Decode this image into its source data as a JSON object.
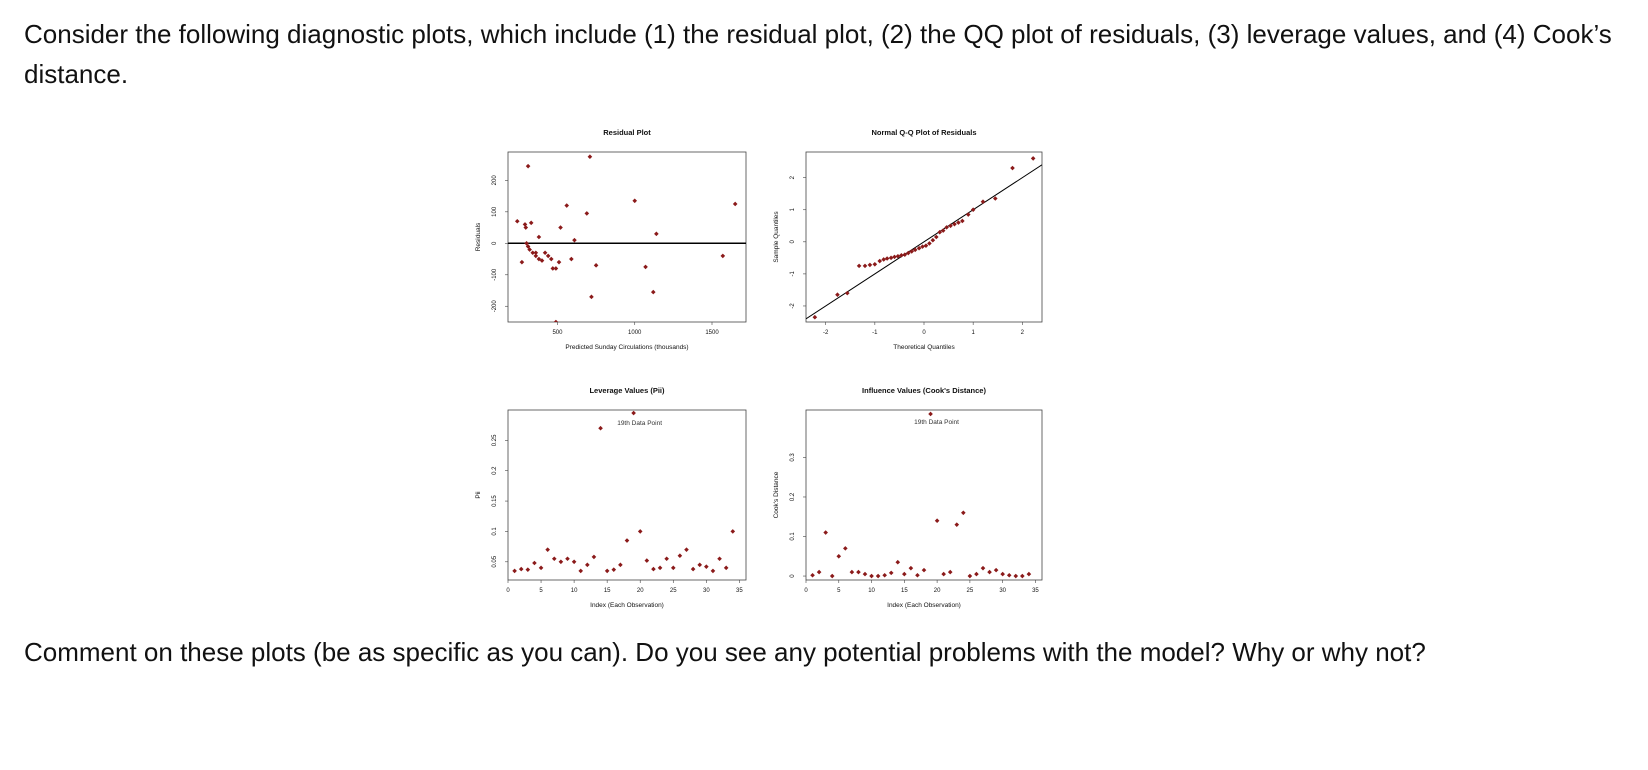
{
  "question": {
    "intro": "Consider the following diagnostic plots, which include (1) the residual plot, (2) the QQ plot of residuals, (3) leverage values, and (4) Cook’s distance.",
    "prompt": "Comment on these plots (be as specific as you can). Do you see any potential problems with the model? Why or why not?"
  },
  "colors": {
    "point": "#8b1a1a",
    "axis": "#111111",
    "reference_line": "#000000"
  },
  "chart_data": [
    {
      "type": "scatter",
      "title": "Residual Plot",
      "xlabel": "Predicted Sunday Circulations (thousands)",
      "ylabel": "Residuals",
      "xlim": [
        180,
        1720
      ],
      "ylim": [
        -250,
        290
      ],
      "xticks": [
        500,
        1000,
        1500
      ],
      "yticks": [
        -200,
        -100,
        0,
        100,
        200
      ],
      "hline": 0,
      "points": [
        [
          240,
          70
        ],
        [
          290,
          60
        ],
        [
          295,
          50
        ],
        [
          330,
          65
        ],
        [
          310,
          -10
        ],
        [
          300,
          0
        ],
        [
          320,
          -20
        ],
        [
          340,
          -30
        ],
        [
          360,
          -40
        ],
        [
          380,
          -50
        ],
        [
          360,
          -30
        ],
        [
          380,
          20
        ],
        [
          400,
          -55
        ],
        [
          420,
          -30
        ],
        [
          440,
          -40
        ],
        [
          460,
          -50
        ],
        [
          470,
          -80
        ],
        [
          490,
          -80
        ],
        [
          510,
          -60
        ],
        [
          520,
          50
        ],
        [
          560,
          120
        ],
        [
          590,
          -50
        ],
        [
          610,
          10
        ],
        [
          690,
          95
        ],
        [
          710,
          275
        ],
        [
          750,
          -70
        ],
        [
          720,
          -170
        ],
        [
          310,
          245
        ],
        [
          490,
          -250
        ],
        [
          1000,
          135
        ],
        [
          1070,
          -75
        ],
        [
          1120,
          -155
        ],
        [
          1140,
          30
        ],
        [
          1570,
          -40
        ],
        [
          1650,
          125
        ],
        [
          270,
          -60
        ]
      ]
    },
    {
      "type": "scatter",
      "title": "Normal Q-Q Plot of Residuals",
      "xlabel": "Theoretical Quantiles",
      "ylabel": "Sample Quantiles",
      "xlim": [
        -2.4,
        2.4
      ],
      "ylim": [
        -2.5,
        2.8
      ],
      "xticks": [
        -2,
        -1,
        0,
        1,
        2
      ],
      "yticks": [
        -2,
        -1,
        0,
        1,
        2
      ],
      "reference_line": {
        "intercept": 0,
        "slope": 1
      },
      "points": [
        [
          -2.22,
          -2.35
        ],
        [
          -1.76,
          -1.65
        ],
        [
          -1.56,
          -1.6
        ],
        [
          -1.32,
          -0.75
        ],
        [
          -1.2,
          -0.75
        ],
        [
          -1.1,
          -0.72
        ],
        [
          -1.0,
          -0.7
        ],
        [
          -0.9,
          -0.6
        ],
        [
          -0.82,
          -0.55
        ],
        [
          -0.75,
          -0.52
        ],
        [
          -0.67,
          -0.5
        ],
        [
          -0.6,
          -0.47
        ],
        [
          -0.53,
          -0.45
        ],
        [
          -0.46,
          -0.42
        ],
        [
          -0.39,
          -0.4
        ],
        [
          -0.32,
          -0.35
        ],
        [
          -0.25,
          -0.3
        ],
        [
          -0.18,
          -0.25
        ],
        [
          -0.1,
          -0.2
        ],
        [
          -0.03,
          -0.15
        ],
        [
          0.04,
          -0.12
        ],
        [
          0.11,
          -0.05
        ],
        [
          0.18,
          0.05
        ],
        [
          0.25,
          0.15
        ],
        [
          0.32,
          0.3
        ],
        [
          0.39,
          0.35
        ],
        [
          0.46,
          0.45
        ],
        [
          0.54,
          0.5
        ],
        [
          0.62,
          0.55
        ],
        [
          0.7,
          0.6
        ],
        [
          0.78,
          0.65
        ],
        [
          0.9,
          0.85
        ],
        [
          1.0,
          1.0
        ],
        [
          1.2,
          1.25
        ],
        [
          1.45,
          1.35
        ],
        [
          1.8,
          2.3
        ],
        [
          2.22,
          2.6
        ]
      ]
    },
    {
      "type": "scatter",
      "title": "Leverage Values (Pii)",
      "xlabel": "Index (Each Observation)",
      "ylabel": "Pii",
      "xlim": [
        0,
        36
      ],
      "ylim": [
        0.02,
        0.3
      ],
      "xticks": [
        0,
        5,
        10,
        15,
        20,
        25,
        30,
        35
      ],
      "yticks": [
        0.05,
        0.1,
        0.15,
        0.2,
        0.25
      ],
      "annotation": {
        "text": "19th Data Point",
        "x": 19,
        "y": 0.285
      },
      "points": [
        [
          1,
          0.035
        ],
        [
          2,
          0.038
        ],
        [
          3,
          0.037
        ],
        [
          4,
          0.048
        ],
        [
          5,
          0.04
        ],
        [
          6,
          0.07
        ],
        [
          7,
          0.055
        ],
        [
          8,
          0.05
        ],
        [
          9,
          0.055
        ],
        [
          10,
          0.05
        ],
        [
          11,
          0.035
        ],
        [
          12,
          0.045
        ],
        [
          13,
          0.058
        ],
        [
          14,
          0.27
        ],
        [
          15,
          0.035
        ],
        [
          16,
          0.037
        ],
        [
          17,
          0.045
        ],
        [
          18,
          0.085
        ],
        [
          19,
          0.295
        ],
        [
          20,
          0.1
        ],
        [
          21,
          0.052
        ],
        [
          22,
          0.038
        ],
        [
          23,
          0.04
        ],
        [
          24,
          0.055
        ],
        [
          25,
          0.04
        ],
        [
          26,
          0.06
        ],
        [
          27,
          0.07
        ],
        [
          28,
          0.038
        ],
        [
          29,
          0.045
        ],
        [
          30,
          0.042
        ],
        [
          31,
          0.035
        ],
        [
          32,
          0.055
        ],
        [
          33,
          0.04
        ],
        [
          34,
          0.1
        ]
      ]
    },
    {
      "type": "scatter",
      "title": "Influence Values (Cook's Distance)",
      "xlabel": "Index (Each Observation)",
      "ylabel": "Cook's Distance",
      "xlim": [
        0,
        36
      ],
      "ylim": [
        -0.01,
        0.42
      ],
      "xticks": [
        0,
        5,
        10,
        15,
        20,
        25,
        30,
        35
      ],
      "yticks": [
        0.0,
        0.1,
        0.2,
        0.3
      ],
      "annotation": {
        "text": "19th Data Point",
        "x": 19,
        "y": 0.4
      },
      "points": [
        [
          1,
          0.002
        ],
        [
          2,
          0.01
        ],
        [
          3,
          0.11
        ],
        [
          4,
          0.0
        ],
        [
          5,
          0.05
        ],
        [
          6,
          0.07
        ],
        [
          7,
          0.01
        ],
        [
          8,
          0.01
        ],
        [
          9,
          0.005
        ],
        [
          10,
          0.0
        ],
        [
          11,
          0.0
        ],
        [
          12,
          0.002
        ],
        [
          13,
          0.008
        ],
        [
          14,
          0.035
        ],
        [
          15,
          0.005
        ],
        [
          16,
          0.02
        ],
        [
          17,
          0.002
        ],
        [
          18,
          0.015
        ],
        [
          19,
          0.41
        ],
        [
          20,
          0.14
        ],
        [
          21,
          0.005
        ],
        [
          22,
          0.01
        ],
        [
          23,
          0.13
        ],
        [
          24,
          0.16
        ],
        [
          25,
          0.0
        ],
        [
          26,
          0.005
        ],
        [
          27,
          0.02
        ],
        [
          28,
          0.01
        ],
        [
          29,
          0.015
        ],
        [
          30,
          0.005
        ],
        [
          31,
          0.002
        ],
        [
          32,
          0.0
        ],
        [
          33,
          0.0
        ],
        [
          34,
          0.005
        ]
      ]
    }
  ]
}
